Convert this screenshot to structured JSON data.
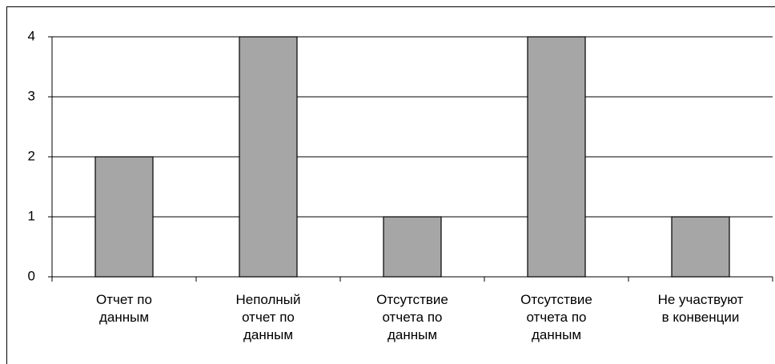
{
  "chart_data": {
    "type": "bar",
    "categories": [
      "Отчет по данным",
      "Неполный отчет по данным",
      "Отсутствие отчета по данным",
      "Отсутствие отчета по данным",
      "Не участвуют в конвенции"
    ],
    "values": [
      2,
      4,
      1,
      4,
      1
    ],
    "color": "#a6a6a6",
    "ylim": [
      0,
      4
    ],
    "yticks": [
      0,
      1,
      2,
      3,
      4
    ],
    "grid": true
  }
}
